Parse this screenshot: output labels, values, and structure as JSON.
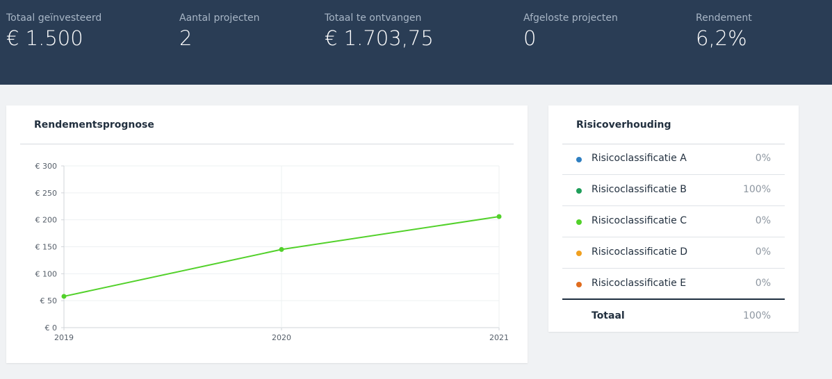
{
  "stats": [
    {
      "label": "Totaal geïnvesteerd",
      "value": "€ 1.500"
    },
    {
      "label": "Aantal projecten",
      "value": "2"
    },
    {
      "label": "Totaal te ontvangen",
      "value": "€ 1.703,75"
    },
    {
      "label": "Afgeloste projecten",
      "value": "0"
    },
    {
      "label": "Rendement",
      "value": "6,2%"
    }
  ],
  "forecast": {
    "title": "Rendementsprognose"
  },
  "chart_data": {
    "type": "line",
    "title": "Rendementsprognose",
    "categories": [
      "2019",
      "2020",
      "2021"
    ],
    "series": [
      {
        "values": [
          58,
          145,
          206
        ],
        "color": "#52d12a"
      }
    ],
    "ylim": [
      0,
      300
    ],
    "y_ticks": [
      "€ 0",
      "€ 50",
      "€ 100",
      "€ 150",
      "€ 200",
      "€ 250",
      "€ 300"
    ],
    "grid": true
  },
  "risk": {
    "title": "Risicoverhouding",
    "items": [
      {
        "label": "Risicoclassificatie A",
        "pct": "0%",
        "color": "#2f7fc1"
      },
      {
        "label": "Risicoclassificatie B",
        "pct": "100%",
        "color": "#1f9e5a"
      },
      {
        "label": "Risicoclassificatie C",
        "pct": "0%",
        "color": "#52d12a"
      },
      {
        "label": "Risicoclassificatie D",
        "pct": "0%",
        "color": "#f0a020"
      },
      {
        "label": "Risicoclassificatie E",
        "pct": "0%",
        "color": "#e06c1e"
      }
    ],
    "total_label": "Totaal",
    "total_pct": "100%"
  }
}
